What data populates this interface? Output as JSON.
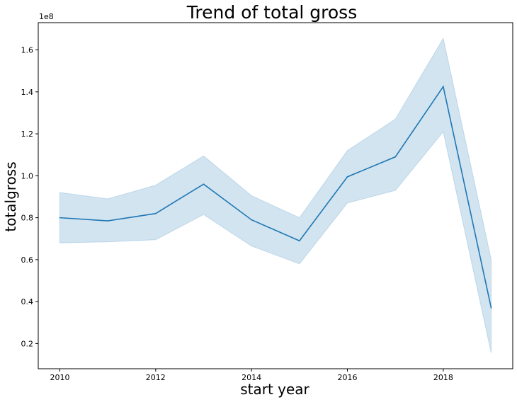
{
  "chart_data": {
    "type": "line",
    "title": "Trend of total gross",
    "xlabel": "start year",
    "ylabel": "totalgross",
    "y_offset_label": "1e8",
    "xlim": [
      2009.55,
      2019.45
    ],
    "ylim": [
      0.08,
      1.73
    ],
    "x_ticks": [
      2010,
      2012,
      2014,
      2016,
      2018
    ],
    "y_ticks": [
      0.2,
      0.4,
      0.6,
      0.8,
      1.0,
      1.2,
      1.4,
      1.6
    ],
    "y_tick_labels": [
      "0.2",
      "0.4",
      "0.6",
      "0.8",
      "1.0",
      "1.2",
      "1.4",
      "1.6"
    ],
    "grid": false,
    "line_color": "#1f77b4",
    "band_color": "#1f77b4",
    "series": [
      {
        "x": [
          2010,
          2011,
          2012,
          2013,
          2014,
          2015,
          2016,
          2017,
          2018,
          2019
        ],
        "values": [
          0.8,
          0.785,
          0.82,
          0.96,
          0.79,
          0.69,
          0.995,
          1.09,
          1.425,
          0.37
        ],
        "ci_low": [
          0.68,
          0.685,
          0.695,
          0.815,
          0.665,
          0.58,
          0.87,
          0.93,
          1.21,
          0.155
        ],
        "ci_high": [
          0.92,
          0.89,
          0.955,
          1.095,
          0.905,
          0.8,
          1.12,
          1.27,
          1.655,
          0.6
        ]
      }
    ]
  }
}
